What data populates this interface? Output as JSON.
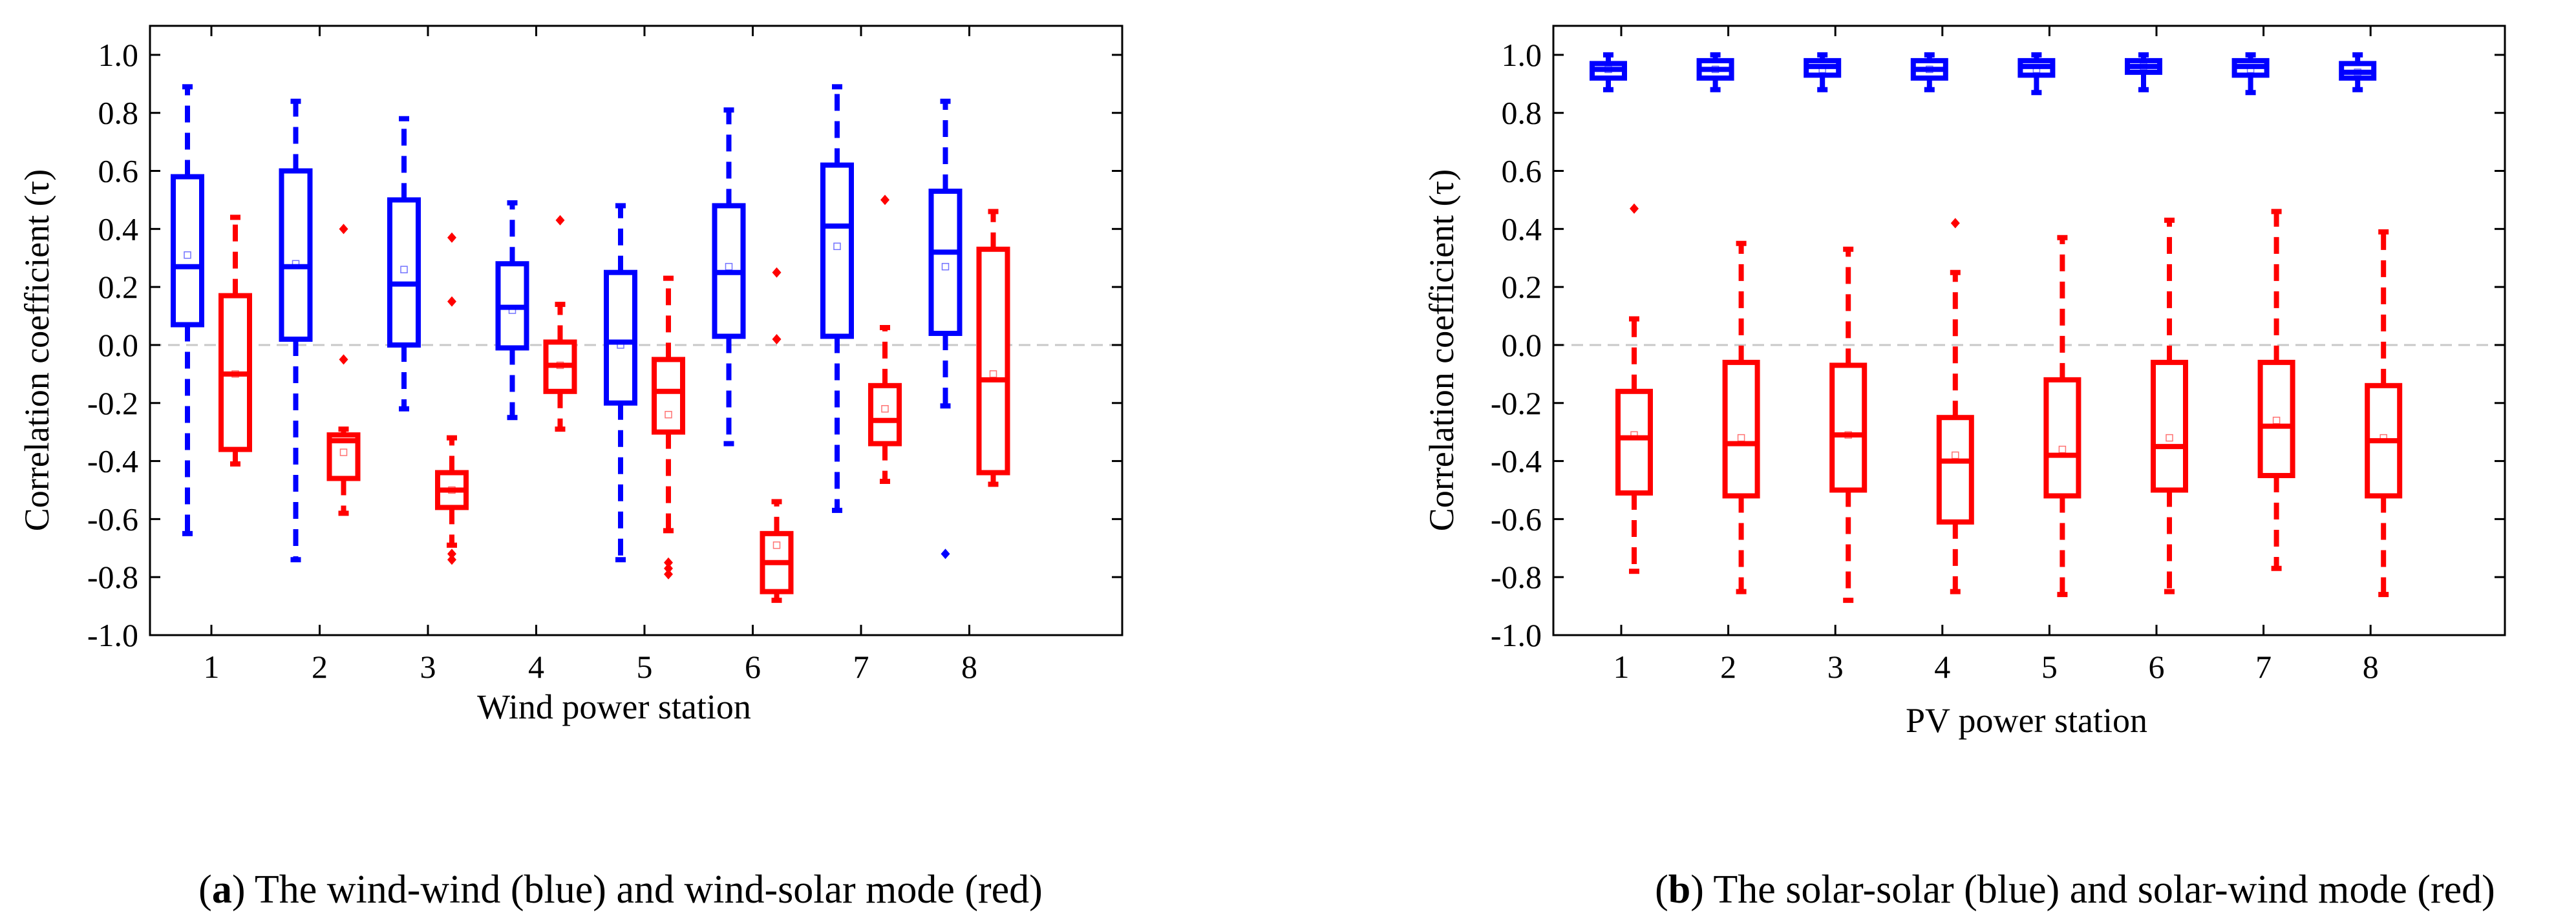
{
  "chart_data": [
    {
      "id": "a",
      "type": "box",
      "title": "",
      "xlabel": "Wind power station",
      "ylabel": "Correlation coefficient (τ)",
      "ylim": [
        -1.0,
        1.1
      ],
      "yticks": [
        -1.0,
        -0.8,
        -0.6,
        -0.4,
        -0.2,
        0.0,
        0.2,
        0.4,
        0.6,
        0.8,
        1.0
      ],
      "ytick_labels": [
        "-1.0",
        "-0.8",
        "-0.6",
        "-0.4",
        "-0.2",
        "0.0",
        "0.2",
        "0.4",
        "0.6",
        "0.8",
        "1.0"
      ],
      "categories": [
        "1",
        "2",
        "3",
        "4",
        "5",
        "6",
        "7",
        "8"
      ],
      "reference_line": 0.0,
      "series": [
        {
          "name": "wind-wind",
          "color": "#0000ff",
          "boxes": [
            {
              "q1": 0.07,
              "median": 0.27,
              "q3": 0.58,
              "whisker_low": -0.65,
              "whisker_high": 0.89,
              "mean": 0.31,
              "outliers": []
            },
            {
              "q1": 0.02,
              "median": 0.27,
              "q3": 0.6,
              "whisker_low": -0.74,
              "whisker_high": 0.84,
              "mean": 0.28,
              "outliers": []
            },
            {
              "q1": 0.0,
              "median": 0.21,
              "q3": 0.5,
              "whisker_low": -0.22,
              "whisker_high": 0.78,
              "mean": 0.26,
              "outliers": []
            },
            {
              "q1": -0.01,
              "median": 0.13,
              "q3": 0.28,
              "whisker_low": -0.25,
              "whisker_high": 0.49,
              "mean": 0.12,
              "outliers": []
            },
            {
              "q1": -0.2,
              "median": 0.01,
              "q3": 0.25,
              "whisker_low": -0.74,
              "whisker_high": 0.48,
              "mean": 0.0,
              "outliers": []
            },
            {
              "q1": 0.03,
              "median": 0.25,
              "q3": 0.48,
              "whisker_low": -0.34,
              "whisker_high": 0.81,
              "mean": 0.27,
              "outliers": []
            },
            {
              "q1": 0.03,
              "median": 0.41,
              "q3": 0.62,
              "whisker_low": -0.57,
              "whisker_high": 0.89,
              "mean": 0.34,
              "outliers": []
            },
            {
              "q1": 0.04,
              "median": 0.32,
              "q3": 0.53,
              "whisker_low": -0.21,
              "whisker_high": 0.84,
              "mean": 0.27,
              "outliers": [
                -0.72
              ]
            }
          ]
        },
        {
          "name": "wind-solar",
          "color": "#ff0000",
          "boxes": [
            {
              "q1": -0.36,
              "median": -0.1,
              "q3": 0.17,
              "whisker_low": -0.41,
              "whisker_high": 0.44,
              "mean": -0.1,
              "outliers": []
            },
            {
              "q1": -0.46,
              "median": -0.33,
              "q3": -0.31,
              "whisker_low": -0.58,
              "whisker_high": -0.29,
              "mean": -0.37,
              "outliers": [
                0.4,
                -0.05
              ]
            },
            {
              "q1": -0.56,
              "median": -0.5,
              "q3": -0.44,
              "whisker_low": -0.69,
              "whisker_high": -0.32,
              "mean": -0.5,
              "outliers": [
                0.37,
                0.15,
                -0.72,
                -0.74
              ]
            },
            {
              "q1": -0.16,
              "median": -0.07,
              "q3": 0.01,
              "whisker_low": -0.29,
              "whisker_high": 0.14,
              "mean": -0.07,
              "outliers": [
                0.43
              ]
            },
            {
              "q1": -0.3,
              "median": -0.16,
              "q3": -0.05,
              "whisker_low": -0.64,
              "whisker_high": 0.23,
              "mean": -0.24,
              "outliers": [
                -0.75,
                -0.77,
                -0.79
              ]
            },
            {
              "q1": -0.85,
              "median": -0.75,
              "q3": -0.65,
              "whisker_low": -0.88,
              "whisker_high": -0.54,
              "mean": -0.69,
              "outliers": [
                0.25,
                0.02
              ]
            },
            {
              "q1": -0.34,
              "median": -0.26,
              "q3": -0.14,
              "whisker_low": -0.47,
              "whisker_high": 0.06,
              "mean": -0.22,
              "outliers": [
                0.5
              ]
            },
            {
              "q1": -0.44,
              "median": -0.12,
              "q3": 0.33,
              "whisker_low": -0.48,
              "whisker_high": 0.46,
              "mean": -0.1,
              "outliers": []
            }
          ]
        }
      ],
      "caption_label": "a",
      "caption_text": " The wind-wind (blue) and wind-solar mode (red)",
      "caption_prefix": "(",
      "caption_suffix": ")"
    },
    {
      "id": "b",
      "type": "box",
      "title": "",
      "xlabel": "PV power station",
      "ylabel": "Correlation coefficient (τ)",
      "ylim": [
        -1.0,
        1.1
      ],
      "yticks": [
        -1.0,
        -0.8,
        -0.6,
        -0.4,
        -0.2,
        0.0,
        0.2,
        0.4,
        0.6,
        0.8,
        1.0
      ],
      "ytick_labels": [
        "-1.0",
        "-0.8",
        "-0.6",
        "-0.4",
        "-0.2",
        "0.0",
        "0.2",
        "0.4",
        "0.6",
        "0.8",
        "1.0"
      ],
      "categories": [
        "1",
        "2",
        "3",
        "4",
        "5",
        "6",
        "7",
        "8"
      ],
      "reference_line": 0.0,
      "series": [
        {
          "name": "solar-solar",
          "color": "#0000ff",
          "boxes": [
            {
              "q1": 0.92,
              "median": 0.95,
              "q3": 0.97,
              "whisker_low": 0.88,
              "whisker_high": 1.0,
              "mean": 0.95,
              "outliers": []
            },
            {
              "q1": 0.92,
              "median": 0.95,
              "q3": 0.98,
              "whisker_low": 0.88,
              "whisker_high": 1.0,
              "mean": 0.95,
              "outliers": []
            },
            {
              "q1": 0.93,
              "median": 0.96,
              "q3": 0.98,
              "whisker_low": 0.88,
              "whisker_high": 1.0,
              "mean": 0.95,
              "outliers": []
            },
            {
              "q1": 0.92,
              "median": 0.95,
              "q3": 0.98,
              "whisker_low": 0.88,
              "whisker_high": 1.0,
              "mean": 0.95,
              "outliers": []
            },
            {
              "q1": 0.93,
              "median": 0.96,
              "q3": 0.98,
              "whisker_low": 0.87,
              "whisker_high": 1.0,
              "mean": 0.95,
              "outliers": []
            },
            {
              "q1": 0.94,
              "median": 0.96,
              "q3": 0.98,
              "whisker_low": 0.88,
              "whisker_high": 1.0,
              "mean": 0.96,
              "outliers": []
            },
            {
              "q1": 0.93,
              "median": 0.96,
              "q3": 0.98,
              "whisker_low": 0.87,
              "whisker_high": 1.0,
              "mean": 0.95,
              "outliers": []
            },
            {
              "q1": 0.92,
              "median": 0.94,
              "q3": 0.97,
              "whisker_low": 0.88,
              "whisker_high": 1.0,
              "mean": 0.94,
              "outliers": []
            }
          ]
        },
        {
          "name": "solar-wind",
          "color": "#ff0000",
          "boxes": [
            {
              "q1": -0.51,
              "median": -0.32,
              "q3": -0.16,
              "whisker_low": -0.78,
              "whisker_high": 0.09,
              "mean": -0.31,
              "outliers": [
                0.47
              ]
            },
            {
              "q1": -0.52,
              "median": -0.34,
              "q3": -0.06,
              "whisker_low": -0.85,
              "whisker_high": 0.35,
              "mean": -0.32,
              "outliers": []
            },
            {
              "q1": -0.5,
              "median": -0.31,
              "q3": -0.07,
              "whisker_low": -0.88,
              "whisker_high": 0.33,
              "mean": -0.31,
              "outliers": []
            },
            {
              "q1": -0.61,
              "median": -0.4,
              "q3": -0.25,
              "whisker_low": -0.85,
              "whisker_high": 0.25,
              "mean": -0.38,
              "outliers": [
                0.42
              ]
            },
            {
              "q1": -0.52,
              "median": -0.38,
              "q3": -0.12,
              "whisker_low": -0.86,
              "whisker_high": 0.37,
              "mean": -0.36,
              "outliers": []
            },
            {
              "q1": -0.5,
              "median": -0.35,
              "q3": -0.06,
              "whisker_low": -0.85,
              "whisker_high": 0.43,
              "mean": -0.32,
              "outliers": []
            },
            {
              "q1": -0.45,
              "median": -0.28,
              "q3": -0.06,
              "whisker_low": -0.77,
              "whisker_high": 0.46,
              "mean": -0.26,
              "outliers": []
            },
            {
              "q1": -0.52,
              "median": -0.33,
              "q3": -0.14,
              "whisker_low": -0.86,
              "whisker_high": 0.39,
              "mean": -0.32,
              "outliers": []
            }
          ]
        }
      ],
      "caption_label": "b",
      "caption_text": " The solar-solar (blue) and solar-wind mode (red)",
      "caption_prefix": "(",
      "caption_suffix": ")"
    }
  ]
}
